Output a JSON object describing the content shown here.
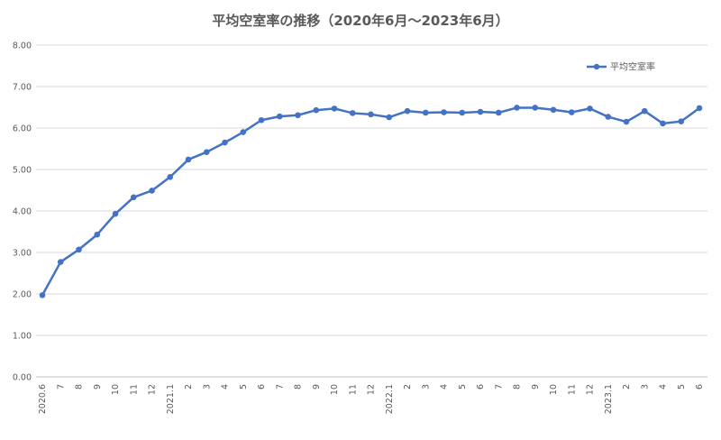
{
  "chart_data": {
    "type": "line",
    "title": "平均空室率の推移（2020年6月～2023年6月）",
    "xlabel": "",
    "ylabel": "",
    "ylim": [
      0,
      8
    ],
    "yticks": [
      "0.00",
      "1.00",
      "2.00",
      "3.00",
      "4.00",
      "5.00",
      "6.00",
      "7.00",
      "8.00"
    ],
    "grid": true,
    "legend_position": "top-right",
    "line_color": "#4472C4",
    "categories": [
      "2020.6",
      "7",
      "8",
      "9",
      "10",
      "11",
      "12",
      "2021.1",
      "2",
      "3",
      "4",
      "5",
      "6",
      "7",
      "8",
      "9",
      "10",
      "11",
      "12",
      "2022.1",
      "2",
      "3",
      "4",
      "5",
      "6",
      "7",
      "8",
      "9",
      "10",
      "11",
      "12",
      "2023.1",
      "2",
      "3",
      "4",
      "5",
      "6"
    ],
    "series": [
      {
        "name": "平均空室率",
        "values": [
          1.97,
          2.77,
          3.07,
          3.43,
          3.93,
          4.33,
          4.49,
          4.82,
          5.24,
          5.42,
          5.65,
          5.9,
          6.19,
          6.28,
          6.31,
          6.43,
          6.47,
          6.36,
          6.33,
          6.26,
          6.41,
          6.37,
          6.38,
          6.37,
          6.39,
          6.37,
          6.49,
          6.49,
          6.44,
          6.38,
          6.47,
          6.27,
          6.15,
          6.41,
          6.11,
          6.16,
          6.48
        ]
      }
    ]
  }
}
